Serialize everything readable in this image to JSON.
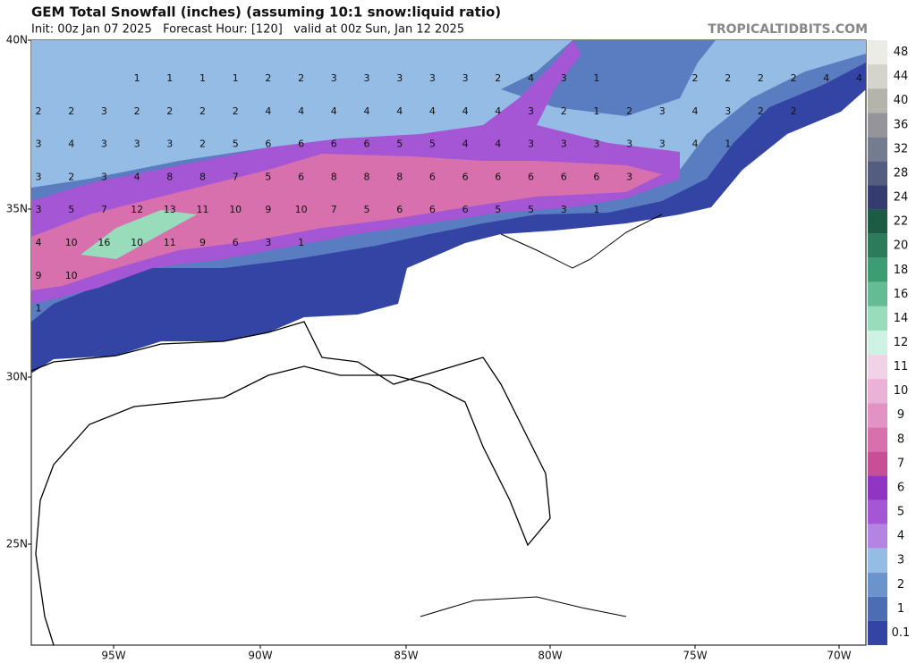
{
  "header": {
    "title": "GEM Total Snowfall (inches) (assuming 10:1 snow:liquid ratio)",
    "subtitle": "Init: 00z Jan 07 2025   Forecast Hour: [120]   valid at 00z Sun, Jan 12 2025",
    "site": "TROPICALTIDBITS.COM"
  },
  "map": {
    "lat_labels": [
      "40N",
      "35N",
      "30N",
      "25N"
    ],
    "lon_labels": [
      "95W",
      "90W",
      "85W",
      "80W",
      "75W",
      "70W"
    ],
    "value_labels": [
      [
        null,
        null,
        null,
        1,
        1,
        1,
        1,
        2,
        2,
        3,
        3,
        3,
        3,
        3,
        2,
        4,
        3,
        1,
        null,
        null,
        2,
        2,
        2,
        2,
        4,
        4
      ],
      [
        2,
        2,
        3,
        2,
        2,
        2,
        2,
        4,
        4,
        4,
        4,
        4,
        4,
        4,
        4,
        3,
        2,
        1,
        2,
        3,
        4,
        3,
        2,
        2
      ],
      [
        3,
        4,
        3,
        3,
        3,
        2,
        5,
        6,
        6,
        6,
        6,
        5,
        5,
        4,
        4,
        3,
        3,
        3,
        3,
        3,
        4,
        1
      ],
      [
        3,
        2,
        3,
        4,
        8,
        8,
        7,
        5,
        6,
        8,
        8,
        8,
        6,
        6,
        6,
        6,
        6,
        6,
        3
      ],
      [
        3,
        5,
        7,
        12,
        13,
        11,
        10,
        9,
        10,
        7,
        5,
        6,
        6,
        6,
        5,
        5,
        3,
        1
      ],
      [
        4,
        10,
        16,
        10,
        11,
        9,
        6,
        3,
        1
      ],
      [
        9,
        10
      ],
      [
        1
      ]
    ]
  },
  "colorbar": {
    "levels": [
      {
        "value": 48,
        "color": "#ecece6"
      },
      {
        "value": 44,
        "color": "#d4d4cc"
      },
      {
        "value": 40,
        "color": "#b4b4ac"
      },
      {
        "value": 36,
        "color": "#94949a"
      },
      {
        "value": 32,
        "color": "#747c90"
      },
      {
        "value": 28,
        "color": "#545c80"
      },
      {
        "value": 24,
        "color": "#343c70"
      },
      {
        "value": 22,
        "color": "#1c5c44"
      },
      {
        "value": 20,
        "color": "#2c7c5c"
      },
      {
        "value": 18,
        "color": "#3c9c74"
      },
      {
        "value": 16,
        "color": "#64bc94"
      },
      {
        "value": 14,
        "color": "#98dcbc"
      },
      {
        "value": 12,
        "color": "#cef2e4"
      },
      {
        "value": 11,
        "color": "#f2d2e6"
      },
      {
        "value": 10,
        "color": "#eab2d6"
      },
      {
        "value": 9,
        "color": "#e292c4"
      },
      {
        "value": 8,
        "color": "#d870ae"
      },
      {
        "value": 7,
        "color": "#c84e96"
      },
      {
        "value": 6,
        "color": "#9034c4"
      },
      {
        "value": 5,
        "color": "#a456d4"
      },
      {
        "value": 4,
        "color": "#b484e2"
      },
      {
        "value": 3,
        "color": "#94bce4"
      },
      {
        "value": 2,
        "color": "#6c94cc"
      },
      {
        "value": 1,
        "color": "#4c6cb4"
      },
      {
        "value": 0.1,
        "color": "#3444a4"
      }
    ]
  }
}
